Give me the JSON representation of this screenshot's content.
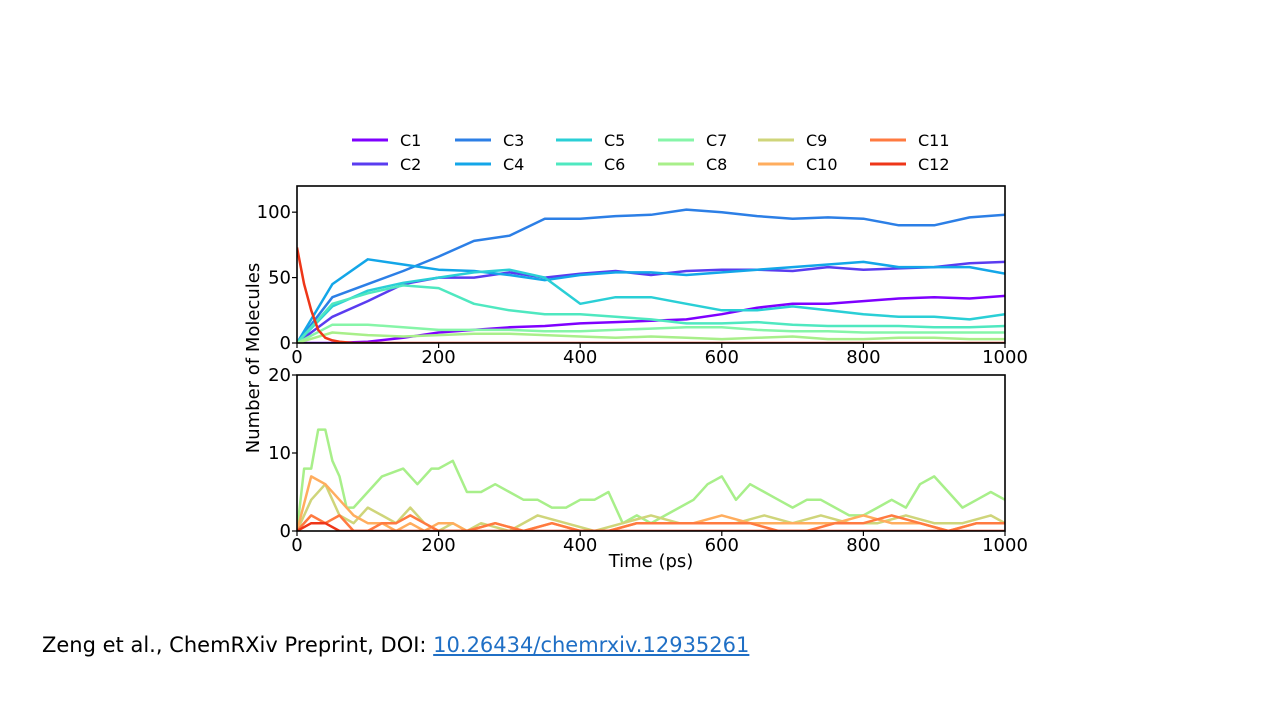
{
  "citation": {
    "text": "Zeng et al., ChemRXiv Preprint, DOI: ",
    "doi": "10.26434/chemrxiv.12935261"
  },
  "chart_data": {
    "type": "line",
    "ylabel": "Number of Molecules",
    "xlabel": "Time (ps)",
    "legend": {
      "placement": "top",
      "entries": [
        "C1",
        "C2",
        "C3",
        "C4",
        "C5",
        "C6",
        "C7",
        "C8",
        "C9",
        "C10",
        "C11",
        "C12"
      ]
    },
    "colors": {
      "C1": "#7f00ff",
      "C2": "#5a3cf0",
      "C3": "#2c7fe6",
      "C4": "#13a6e8",
      "C5": "#2acfd6",
      "C6": "#4fe8c0",
      "C7": "#86f5a8",
      "C8": "#a8ef8a",
      "C9": "#cfd57a",
      "C10": "#ffad5e",
      "C11": "#ff7a40",
      "C12": "#ee3618"
    },
    "panels": [
      {
        "xlim": [
          0,
          1000
        ],
        "ylim": [
          0,
          120
        ],
        "xticks": [
          "0",
          "200",
          "400",
          "600",
          "800",
          "1000"
        ],
        "yticks": [
          "0",
          "50",
          "100"
        ],
        "ytick_values": [
          0,
          50,
          100
        ],
        "series": [
          {
            "name": "C1",
            "x": [
              0,
              50,
              100,
              150,
              200,
              250,
              300,
              350,
              400,
              450,
              500,
              550,
              600,
              650,
              700,
              750,
              800,
              850,
              900,
              950,
              1000
            ],
            "y": [
              0,
              0,
              1,
              4,
              8,
              10,
              12,
              13,
              15,
              16,
              17,
              18,
              22,
              27,
              30,
              30,
              32,
              34,
              35,
              34,
              36
            ]
          },
          {
            "name": "C2",
            "x": [
              0,
              50,
              100,
              150,
              200,
              250,
              300,
              350,
              400,
              450,
              500,
              550,
              600,
              650,
              700,
              750,
              800,
              850,
              900,
              950,
              1000
            ],
            "y": [
              0,
              20,
              32,
              45,
              50,
              50,
              54,
              50,
              53,
              55,
              52,
              55,
              56,
              56,
              55,
              58,
              56,
              57,
              58,
              61,
              62
            ]
          },
          {
            "name": "C3",
            "x": [
              0,
              50,
              100,
              150,
              200,
              250,
              300,
              350,
              400,
              450,
              500,
              550,
              600,
              650,
              700,
              750,
              800,
              850,
              900,
              950,
              1000
            ],
            "y": [
              0,
              35,
              45,
              55,
              66,
              78,
              82,
              95,
              95,
              97,
              98,
              102,
              100,
              97,
              95,
              96,
              95,
              90,
              90,
              96,
              98
            ]
          },
          {
            "name": "C4",
            "x": [
              0,
              50,
              100,
              150,
              200,
              250,
              300,
              350,
              400,
              450,
              500,
              550,
              600,
              650,
              700,
              750,
              800,
              850,
              900,
              950,
              1000
            ],
            "y": [
              0,
              45,
              64,
              60,
              56,
              55,
              52,
              48,
              52,
              54,
              54,
              52,
              54,
              56,
              58,
              60,
              62,
              58,
              58,
              58,
              53
            ]
          },
          {
            "name": "C5",
            "x": [
              0,
              50,
              100,
              150,
              200,
              250,
              300,
              350,
              400,
              450,
              500,
              550,
              600,
              650,
              700,
              750,
              800,
              850,
              900,
              950,
              1000
            ],
            "y": [
              0,
              28,
              40,
              46,
              50,
              54,
              56,
              50,
              30,
              35,
              35,
              30,
              25,
              25,
              28,
              25,
              22,
              20,
              20,
              18,
              22
            ]
          },
          {
            "name": "C6",
            "x": [
              0,
              50,
              100,
              150,
              200,
              250,
              300,
              350,
              400,
              450,
              500,
              550,
              600,
              650,
              700,
              750,
              800,
              850,
              900,
              950,
              1000
            ],
            "y": [
              0,
              30,
              38,
              44,
              42,
              30,
              25,
              22,
              22,
              20,
              18,
              15,
              15,
              16,
              14,
              13,
              13,
              13,
              12,
              12,
              13
            ]
          },
          {
            "name": "C7",
            "x": [
              0,
              50,
              100,
              150,
              200,
              250,
              300,
              350,
              400,
              450,
              500,
              550,
              600,
              650,
              700,
              750,
              800,
              850,
              900,
              950,
              1000
            ],
            "y": [
              0,
              14,
              14,
              12,
              10,
              10,
              10,
              9,
              9,
              10,
              11,
              12,
              12,
              10,
              9,
              9,
              8,
              8,
              8,
              8,
              8
            ]
          },
          {
            "name": "C8",
            "x": [
              0,
              50,
              100,
              150,
              200,
              250,
              300,
              350,
              400,
              450,
              500,
              550,
              600,
              650,
              700,
              750,
              800,
              850,
              900,
              950,
              1000
            ],
            "y": [
              0,
              8,
              6,
              5,
              6,
              7,
              7,
              6,
              5,
              4,
              5,
              4,
              3,
              4,
              5,
              3,
              3,
              4,
              4,
              3,
              3
            ]
          },
          {
            "name": "C12",
            "x": [
              0,
              10,
              20,
              30,
              40,
              50,
              60,
              80,
              100,
              150,
              200,
              300,
              400,
              500,
              600,
              700,
              800,
              900,
              1000
            ],
            "y": [
              73,
              45,
              25,
              10,
              4,
              2,
              1,
              0,
              0,
              0,
              0,
              0,
              0,
              0,
              0,
              0,
              0,
              0,
              0
            ]
          }
        ]
      },
      {
        "xlim": [
          0,
          1000
        ],
        "ylim": [
          0,
          20
        ],
        "xticks": [
          "0",
          "200",
          "400",
          "600",
          "800",
          "1000"
        ],
        "yticks": [
          "0",
          "10",
          "20"
        ],
        "ytick_values": [
          0,
          10,
          20
        ],
        "series": [
          {
            "name": "C8",
            "x": [
              0,
              10,
              20,
              30,
              40,
              50,
              60,
              70,
              80,
              100,
              120,
              150,
              170,
              190,
              200,
              220,
              240,
              260,
              280,
              300,
              320,
              340,
              360,
              380,
              400,
              420,
              440,
              460,
              480,
              500,
              520,
              540,
              560,
              580,
              600,
              620,
              640,
              660,
              680,
              700,
              720,
              740,
              760,
              780,
              800,
              820,
              840,
              860,
              880,
              900,
              920,
              940,
              960,
              980,
              1000
            ],
            "y": [
              0,
              8,
              8,
              13,
              13,
              9,
              7,
              3,
              3,
              5,
              7,
              8,
              6,
              8,
              8,
              9,
              5,
              5,
              6,
              5,
              4,
              4,
              3,
              3,
              4,
              4,
              5,
              1,
              2,
              1,
              2,
              3,
              4,
              6,
              7,
              4,
              6,
              5,
              4,
              3,
              4,
              4,
              3,
              2,
              2,
              3,
              4,
              3,
              6,
              7,
              5,
              3,
              4,
              5,
              4
            ]
          },
          {
            "name": "C9",
            "x": [
              0,
              20,
              40,
              60,
              80,
              100,
              120,
              140,
              160,
              180,
              200,
              220,
              240,
              260,
              300,
              340,
              380,
              420,
              460,
              500,
              540,
              580,
              620,
              660,
              700,
              740,
              780,
              820,
              860,
              900,
              940,
              980,
              1000
            ],
            "y": [
              0,
              4,
              6,
              2,
              1,
              3,
              2,
              1,
              3,
              1,
              0,
              1,
              0,
              1,
              0,
              2,
              1,
              0,
              1,
              2,
              1,
              1,
              1,
              2,
              1,
              2,
              1,
              1,
              2,
              1,
              1,
              2,
              1
            ]
          },
          {
            "name": "C10",
            "x": [
              0,
              20,
              40,
              60,
              80,
              100,
              120,
              140,
              160,
              180,
              200,
              220,
              240,
              280,
              320,
              360,
              400,
              440,
              480,
              520,
              560,
              600,
              640,
              680,
              720,
              760,
              800,
              840,
              880,
              920,
              960,
              1000
            ],
            "y": [
              0,
              7,
              6,
              4,
              2,
              1,
              1,
              0,
              1,
              0,
              1,
              1,
              0,
              1,
              0,
              1,
              0,
              0,
              1,
              1,
              1,
              2,
              1,
              1,
              1,
              1,
              2,
              1,
              1,
              0,
              1,
              1
            ]
          },
          {
            "name": "C11",
            "x": [
              0,
              20,
              40,
              60,
              80,
              100,
              120,
              140,
              160,
              180,
              200,
              240,
              280,
              320,
              360,
              400,
              440,
              480,
              520,
              560,
              600,
              640,
              680,
              720,
              760,
              800,
              840,
              880,
              920,
              960,
              1000
            ],
            "y": [
              0,
              2,
              1,
              2,
              0,
              0,
              1,
              1,
              2,
              1,
              0,
              0,
              1,
              0,
              1,
              0,
              0,
              1,
              1,
              1,
              1,
              1,
              0,
              0,
              1,
              1,
              2,
              1,
              0,
              1,
              1
            ]
          },
          {
            "name": "C12",
            "x": [
              0,
              20,
              40,
              60,
              80,
              100,
              150,
              200,
              300,
              400,
              500,
              600,
              700,
              800,
              900,
              1000
            ],
            "y": [
              0,
              1,
              1,
              0,
              0,
              0,
              0,
              0,
              0,
              0,
              0,
              0,
              0,
              0,
              0,
              0
            ]
          }
        ]
      }
    ]
  }
}
